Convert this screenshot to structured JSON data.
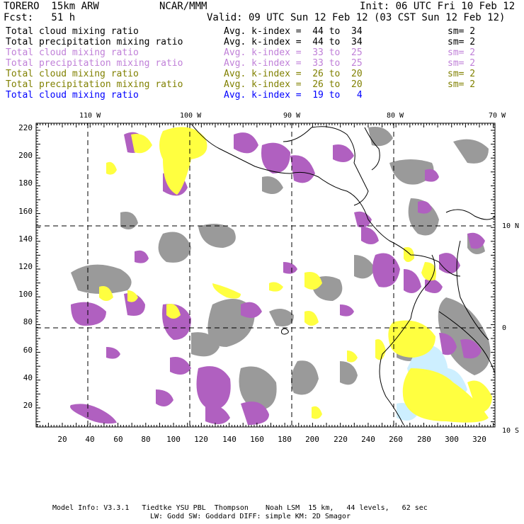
{
  "header": {
    "model": "TORERO  15km ARW",
    "org": "NCAR/MMM",
    "init": "Init: 06 UTC Fri 10 Feb 12",
    "fcst": "Fcst:   51 h",
    "valid": "Valid: 09 UTC Sun 12 Feb 12 (03 CST Sun 12 Feb 12)"
  },
  "legend": [
    {
      "field": "Total cloud mixing ratio",
      "kindex": "Avg. k-index =  44 to  34",
      "sm": "sm= 2",
      "color": "#000000"
    },
    {
      "field": "Total precipitation mixing ratio",
      "kindex": "Avg. k-index =  44 to  34",
      "sm": "sm= 2",
      "color": "#000000"
    },
    {
      "field": "Total cloud mixing ratio",
      "kindex": "Avg. k-index =  33 to  25",
      "sm": "sm= 2",
      "color": "#c080d8"
    },
    {
      "field": "Total precipitation mixing ratio",
      "kindex": "Avg. k-index =  33 to  25",
      "sm": "sm= 2",
      "color": "#c080d8"
    },
    {
      "field": "Total cloud mixing ratio",
      "kindex": "Avg. k-index =  26 to  20",
      "sm": "sm= 2",
      "color": "#808000"
    },
    {
      "field": "Total precipitation mixing ratio",
      "kindex": "Avg. k-index =  26 to  20",
      "sm": "sm= 2",
      "color": "#808000"
    },
    {
      "field": "Total cloud mixing ratio",
      "kindex": "Avg. k-index =  19 to   4",
      "sm": "",
      "color": "#0000ff"
    }
  ],
  "map": {
    "lon_labels": [
      "110 W",
      "100 W",
      "90 W",
      "80 W",
      "70 W"
    ],
    "lat_labels": [
      "10 N",
      "0",
      "10 S"
    ],
    "x_ticks": [
      "20",
      "40",
      "60",
      "80",
      "100",
      "120",
      "140",
      "160",
      "180",
      "200",
      "220",
      "240",
      "260",
      "280",
      "300",
      "320"
    ],
    "y_ticks": [
      "20",
      "40",
      "60",
      "80",
      "100",
      "120",
      "140",
      "160",
      "180",
      "200",
      "220"
    ],
    "colors": {
      "gray": "#9a9a9a",
      "purple": "#b060c0",
      "yellow": "#ffff40",
      "lightblue": "#cdefff"
    }
  },
  "footer": {
    "line1": "Model Info: V3.3.1   Tiedtke YSU PBL  Thompson    Noah LSM  15 km,   44 levels,   62 sec",
    "line2": "LW: Godd SW: Goddard DIFF: simple KM: 2D Smagor"
  }
}
